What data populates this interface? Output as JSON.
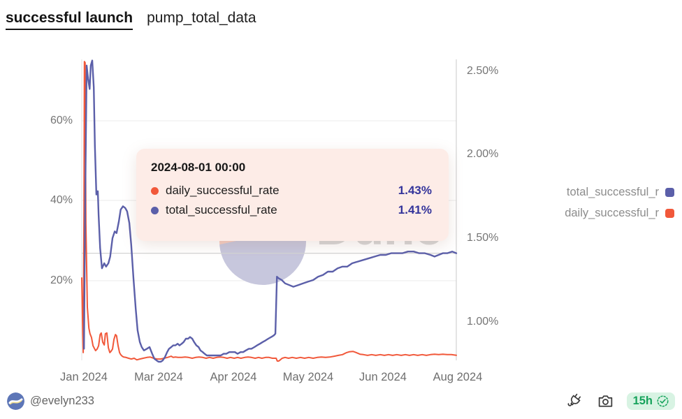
{
  "header": {
    "title": "successful launch",
    "subtitle": "pump_total_data"
  },
  "tooltip": {
    "title": "2024-08-01 00:00",
    "rows": [
      {
        "label": "daily_successful_rate",
        "value": "1.43%",
        "color": "#f1583a"
      },
      {
        "label": "total_successful_rate",
        "value": "1.41%",
        "color": "#5b5fa9"
      }
    ]
  },
  "legend": [
    {
      "label": "total_successful_r",
      "color": "#5b5fa9"
    },
    {
      "label": "daily_successful_r",
      "color": "#f1583a"
    }
  ],
  "watermark": {
    "text": "Dune"
  },
  "footer": {
    "author": "@evelyn233",
    "badge": {
      "text": "15h",
      "bg": "#d8f3e3",
      "fg": "#17a35c"
    },
    "icons": [
      "fork-icon",
      "camera-icon",
      "verified-seal-icon"
    ]
  },
  "chart_data": {
    "type": "line",
    "title": "successful launch — pump_total_data",
    "x_ticks": [
      "Jan 2024",
      "Mar 2024",
      "Apr 2024",
      "May 2024",
      "Jun 2024",
      "Aug 2024"
    ],
    "left_axis": {
      "ticks": [
        "60%",
        "40%",
        "20%"
      ],
      "tick_values": [
        60,
        40,
        20
      ],
      "unit": "%",
      "range": [
        0,
        75
      ]
    },
    "right_axis": {
      "ticks": [
        "2.50%",
        "2.00%",
        "1.50%",
        "1.00%"
      ],
      "tick_values": [
        2.5,
        2.0,
        1.5,
        1.0
      ],
      "unit": "%",
      "range": [
        0.87,
        2.57
      ]
    },
    "grid": true,
    "legend_position": "right",
    "hover_crosshair_value": 1.41,
    "series": [
      {
        "name": "daily_successful_rate",
        "axis": "left",
        "color": "#f1583a",
        "unit": "%",
        "points": [
          [
            0.0,
            20.7
          ],
          [
            0.002,
            9.9
          ],
          [
            0.004,
            2.1
          ],
          [
            0.006,
            37.7
          ],
          [
            0.007,
            74.6
          ],
          [
            0.009,
            74.3
          ],
          [
            0.011,
            34.3
          ],
          [
            0.015,
            13.4
          ],
          [
            0.019,
            8.2
          ],
          [
            0.022,
            6.8
          ],
          [
            0.026,
            5.9
          ],
          [
            0.03,
            3.8
          ],
          [
            0.034,
            3.1
          ],
          [
            0.037,
            2.6
          ],
          [
            0.041,
            3.0
          ],
          [
            0.045,
            3.8
          ],
          [
            0.049,
            6.6
          ],
          [
            0.052,
            7.0
          ],
          [
            0.056,
            4.7
          ],
          [
            0.06,
            4.0
          ],
          [
            0.063,
            6.8
          ],
          [
            0.067,
            7.0
          ],
          [
            0.071,
            3.3
          ],
          [
            0.075,
            2.1
          ],
          [
            0.078,
            2.4
          ],
          [
            0.082,
            3.0
          ],
          [
            0.086,
            5.4
          ],
          [
            0.09,
            6.6
          ],
          [
            0.093,
            6.3
          ],
          [
            0.097,
            3.8
          ],
          [
            0.101,
            2.1
          ],
          [
            0.104,
            1.6
          ],
          [
            0.108,
            1.2
          ],
          [
            0.112,
            1.0
          ],
          [
            0.118,
            0.9
          ],
          [
            0.125,
            0.7
          ],
          [
            0.132,
            0.5
          ],
          [
            0.14,
            0.7
          ],
          [
            0.147,
            0.3
          ],
          [
            0.155,
            0.5
          ],
          [
            0.164,
            0.7
          ],
          [
            0.174,
            0.9
          ],
          [
            0.183,
            1.0
          ],
          [
            0.192,
            0.7
          ],
          [
            0.201,
            0.5
          ],
          [
            0.211,
            0.5
          ],
          [
            0.22,
            0.7
          ],
          [
            0.229,
            0.9
          ],
          [
            0.239,
            1.2
          ],
          [
            0.244,
            0.9
          ],
          [
            0.25,
            1.0
          ],
          [
            0.257,
            0.9
          ],
          [
            0.267,
            0.9
          ],
          [
            0.276,
            1.0
          ],
          [
            0.285,
            0.9
          ],
          [
            0.295,
            0.7
          ],
          [
            0.304,
            0.9
          ],
          [
            0.313,
            1.0
          ],
          [
            0.323,
            0.9
          ],
          [
            0.332,
            0.7
          ],
          [
            0.341,
            0.9
          ],
          [
            0.351,
            0.7
          ],
          [
            0.36,
            0.9
          ],
          [
            0.369,
            1.0
          ],
          [
            0.379,
            0.9
          ],
          [
            0.388,
            0.7
          ],
          [
            0.397,
            0.9
          ],
          [
            0.407,
            0.7
          ],
          [
            0.416,
            0.9
          ],
          [
            0.425,
            0.7
          ],
          [
            0.435,
            0.9
          ],
          [
            0.444,
            1.0
          ],
          [
            0.453,
            0.9
          ],
          [
            0.463,
            0.7
          ],
          [
            0.472,
            0.9
          ],
          [
            0.481,
            0.7
          ],
          [
            0.491,
            0.9
          ],
          [
            0.5,
            0.9
          ],
          [
            0.509,
            0.7
          ],
          [
            0.519,
            0.7
          ],
          [
            0.522,
            0.0
          ],
          [
            0.526,
            0.0
          ],
          [
            0.53,
            0.3
          ],
          [
            0.535,
            0.7
          ],
          [
            0.543,
            0.9
          ],
          [
            0.552,
            0.7
          ],
          [
            0.562,
            0.9
          ],
          [
            0.573,
            0.7
          ],
          [
            0.584,
            0.9
          ],
          [
            0.595,
            0.7
          ],
          [
            0.606,
            0.9
          ],
          [
            0.618,
            0.7
          ],
          [
            0.629,
            0.9
          ],
          [
            0.64,
            1.0
          ],
          [
            0.651,
            0.9
          ],
          [
            0.662,
            1.0
          ],
          [
            0.674,
            1.2
          ],
          [
            0.685,
            1.4
          ],
          [
            0.696,
            1.6
          ],
          [
            0.707,
            2.1
          ],
          [
            0.714,
            2.3
          ],
          [
            0.724,
            2.4
          ],
          [
            0.733,
            2.1
          ],
          [
            0.743,
            1.7
          ],
          [
            0.752,
            1.6
          ],
          [
            0.763,
            1.4
          ],
          [
            0.774,
            1.6
          ],
          [
            0.785,
            1.4
          ],
          [
            0.797,
            1.6
          ],
          [
            0.808,
            1.4
          ],
          [
            0.819,
            1.6
          ],
          [
            0.83,
            1.4
          ],
          [
            0.841,
            1.6
          ],
          [
            0.853,
            1.4
          ],
          [
            0.864,
            1.6
          ],
          [
            0.875,
            1.4
          ],
          [
            0.886,
            1.6
          ],
          [
            0.897,
            1.4
          ],
          [
            0.909,
            1.6
          ],
          [
            0.92,
            1.4
          ],
          [
            0.931,
            1.6
          ],
          [
            0.942,
            1.7
          ],
          [
            0.953,
            1.6
          ],
          [
            0.964,
            1.7
          ],
          [
            0.976,
            1.6
          ],
          [
            0.987,
            1.6
          ],
          [
            1.0,
            1.43
          ]
        ]
      },
      {
        "name": "total_successful_rate",
        "axis": "right",
        "color": "#5b5fa9",
        "unit": "%",
        "points": [
          [
            0.006,
            0.84
          ],
          [
            0.009,
            1.67
          ],
          [
            0.013,
            2.53
          ],
          [
            0.017,
            2.45
          ],
          [
            0.021,
            2.39
          ],
          [
            0.024,
            2.53
          ],
          [
            0.028,
            2.56
          ],
          [
            0.032,
            2.4
          ],
          [
            0.035,
            2.05
          ],
          [
            0.039,
            1.76
          ],
          [
            0.043,
            1.78
          ],
          [
            0.045,
            1.64
          ],
          [
            0.049,
            1.44
          ],
          [
            0.054,
            1.32
          ],
          [
            0.06,
            1.35
          ],
          [
            0.065,
            1.33
          ],
          [
            0.071,
            1.35
          ],
          [
            0.076,
            1.39
          ],
          [
            0.082,
            1.5
          ],
          [
            0.088,
            1.54
          ],
          [
            0.093,
            1.53
          ],
          [
            0.099,
            1.6
          ],
          [
            0.104,
            1.67
          ],
          [
            0.11,
            1.69
          ],
          [
            0.116,
            1.68
          ],
          [
            0.121,
            1.66
          ],
          [
            0.127,
            1.59
          ],
          [
            0.132,
            1.46
          ],
          [
            0.138,
            1.26
          ],
          [
            0.144,
            1.08
          ],
          [
            0.149,
            0.95
          ],
          [
            0.155,
            0.88
          ],
          [
            0.16,
            0.85
          ],
          [
            0.166,
            0.83
          ],
          [
            0.174,
            0.84
          ],
          [
            0.181,
            0.85
          ],
          [
            0.188,
            0.81
          ],
          [
            0.194,
            0.78
          ],
          [
            0.2,
            0.77
          ],
          [
            0.205,
            0.75
          ],
          [
            0.211,
            0.75
          ],
          [
            0.216,
            0.77
          ],
          [
            0.222,
            0.79
          ],
          [
            0.228,
            0.82
          ],
          [
            0.233,
            0.84
          ],
          [
            0.239,
            0.85
          ],
          [
            0.244,
            0.86
          ],
          [
            0.25,
            0.86
          ],
          [
            0.256,
            0.87
          ],
          [
            0.261,
            0.86
          ],
          [
            0.267,
            0.87
          ],
          [
            0.272,
            0.88
          ],
          [
            0.278,
            0.9
          ],
          [
            0.284,
            0.9
          ],
          [
            0.289,
            0.91
          ],
          [
            0.295,
            0.9
          ],
          [
            0.3,
            0.88
          ],
          [
            0.306,
            0.86
          ],
          [
            0.312,
            0.85
          ],
          [
            0.317,
            0.83
          ],
          [
            0.323,
            0.82
          ],
          [
            0.328,
            0.81
          ],
          [
            0.334,
            0.8
          ],
          [
            0.341,
            0.8
          ],
          [
            0.349,
            0.8
          ],
          [
            0.356,
            0.8
          ],
          [
            0.364,
            0.8
          ],
          [
            0.371,
            0.8
          ],
          [
            0.379,
            0.81
          ],
          [
            0.386,
            0.81
          ],
          [
            0.394,
            0.82
          ],
          [
            0.401,
            0.82
          ],
          [
            0.409,
            0.82
          ],
          [
            0.416,
            0.81
          ],
          [
            0.424,
            0.82
          ],
          [
            0.431,
            0.82
          ],
          [
            0.438,
            0.83
          ],
          [
            0.446,
            0.84
          ],
          [
            0.453,
            0.84
          ],
          [
            0.461,
            0.85
          ],
          [
            0.468,
            0.86
          ],
          [
            0.476,
            0.87
          ],
          [
            0.483,
            0.88
          ],
          [
            0.491,
            0.89
          ],
          [
            0.498,
            0.9
          ],
          [
            0.506,
            0.91
          ],
          [
            0.513,
            0.92
          ],
          [
            0.517,
            0.93
          ],
          [
            0.521,
            1.27
          ],
          [
            0.526,
            1.26
          ],
          [
            0.534,
            1.25
          ],
          [
            0.543,
            1.23
          ],
          [
            0.554,
            1.22
          ],
          [
            0.565,
            1.21
          ],
          [
            0.578,
            1.22
          ],
          [
            0.591,
            1.23
          ],
          [
            0.604,
            1.24
          ],
          [
            0.618,
            1.25
          ],
          [
            0.631,
            1.27
          ],
          [
            0.644,
            1.28
          ],
          [
            0.657,
            1.3
          ],
          [
            0.67,
            1.3
          ],
          [
            0.683,
            1.32
          ],
          [
            0.696,
            1.33
          ],
          [
            0.709,
            1.33
          ],
          [
            0.722,
            1.35
          ],
          [
            0.737,
            1.36
          ],
          [
            0.752,
            1.37
          ],
          [
            0.767,
            1.38
          ],
          [
            0.782,
            1.39
          ],
          [
            0.797,
            1.4
          ],
          [
            0.812,
            1.4
          ],
          [
            0.826,
            1.41
          ],
          [
            0.841,
            1.41
          ],
          [
            0.856,
            1.41
          ],
          [
            0.871,
            1.42
          ],
          [
            0.886,
            1.42
          ],
          [
            0.901,
            1.41
          ],
          [
            0.916,
            1.41
          ],
          [
            0.931,
            1.4
          ],
          [
            0.942,
            1.39
          ],
          [
            0.953,
            1.4
          ],
          [
            0.964,
            1.41
          ],
          [
            0.976,
            1.41
          ],
          [
            0.989,
            1.42
          ],
          [
            1.0,
            1.41
          ]
        ]
      }
    ]
  }
}
